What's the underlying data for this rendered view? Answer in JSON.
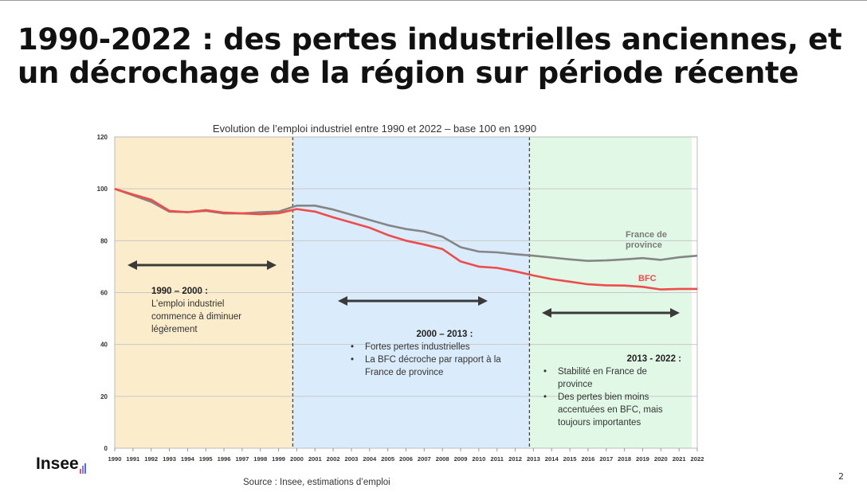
{
  "slide": {
    "title_line1": "1990-2022 : des pertes industrielles anciennes, et",
    "title_line2": "un décrochage de la région sur période récente",
    "source": "Source : Insee, estimations d’emploi",
    "page_number": "2",
    "logo_text": "Insee"
  },
  "annotations": {
    "period1": {
      "heading": "1990 – 2000 :",
      "lines": [
        "L’emploi industriel",
        "commence à diminuer",
        "légèrement"
      ]
    },
    "period2": {
      "heading": "2000 – 2013 :",
      "bullets": [
        "Fortes pertes industrielles",
        "La BFC décroche par rapport à la France de province"
      ]
    },
    "period3": {
      "heading": "2013 - 2022 :",
      "bullets": [
        "Stabilité en France de province",
        "Des pertes bien moins accentuées en BFC, mais toujours importantes"
      ]
    }
  },
  "chart_data": {
    "type": "line",
    "title": "Evolution de l’emploi industriel entre 1990 et 2022 – base 100 en 1990",
    "xlabel": "",
    "ylabel": "",
    "ylim": [
      0,
      120
    ],
    "yticks": [
      0,
      20,
      40,
      60,
      80,
      100,
      120
    ],
    "x": [
      1990,
      1991,
      1992,
      1993,
      1994,
      1995,
      1996,
      1997,
      1998,
      1999,
      2000,
      2001,
      2002,
      2003,
      2004,
      2005,
      2006,
      2007,
      2008,
      2009,
      2010,
      2011,
      2012,
      2013,
      2014,
      2015,
      2016,
      2017,
      2018,
      2019,
      2020,
      2021,
      2022
    ],
    "grid": true,
    "periods": [
      {
        "from": 1990,
        "to": 2000,
        "color": "#fbeccb"
      },
      {
        "from": 2000,
        "to": 2013,
        "color": "#daecfb"
      },
      {
        "from": 2013,
        "to": 2022,
        "color": "#e2f8e6"
      }
    ],
    "series": [
      {
        "name": "France de province",
        "label": "France de\nprovince",
        "label_lines": [
          "France de",
          "province"
        ],
        "color": "#858585",
        "values": [
          100,
          97.5,
          95,
          91.2,
          91,
          91.5,
          90.5,
          90.5,
          91,
          91.2,
          93.5,
          93.5,
          92,
          90,
          88,
          86,
          84.5,
          83.5,
          81.5,
          77.5,
          75.8,
          75.5,
          74.8,
          74.2,
          73.5,
          72.8,
          72.2,
          72.4,
          72.8,
          73.3,
          72.6,
          73.6,
          74.2
        ]
      },
      {
        "name": "BFC",
        "color": "#ee4b4b",
        "values": [
          100,
          97.8,
          95.8,
          91.5,
          91,
          91.8,
          90.8,
          90.5,
          90.2,
          90.6,
          92.2,
          91.2,
          89,
          87,
          85,
          82.2,
          80,
          78.5,
          76.8,
          72,
          70,
          69.5,
          68.2,
          66.6,
          65.2,
          64.2,
          63.2,
          62.8,
          62.7,
          62.2,
          61.2,
          61.4,
          61.4
        ]
      }
    ]
  }
}
